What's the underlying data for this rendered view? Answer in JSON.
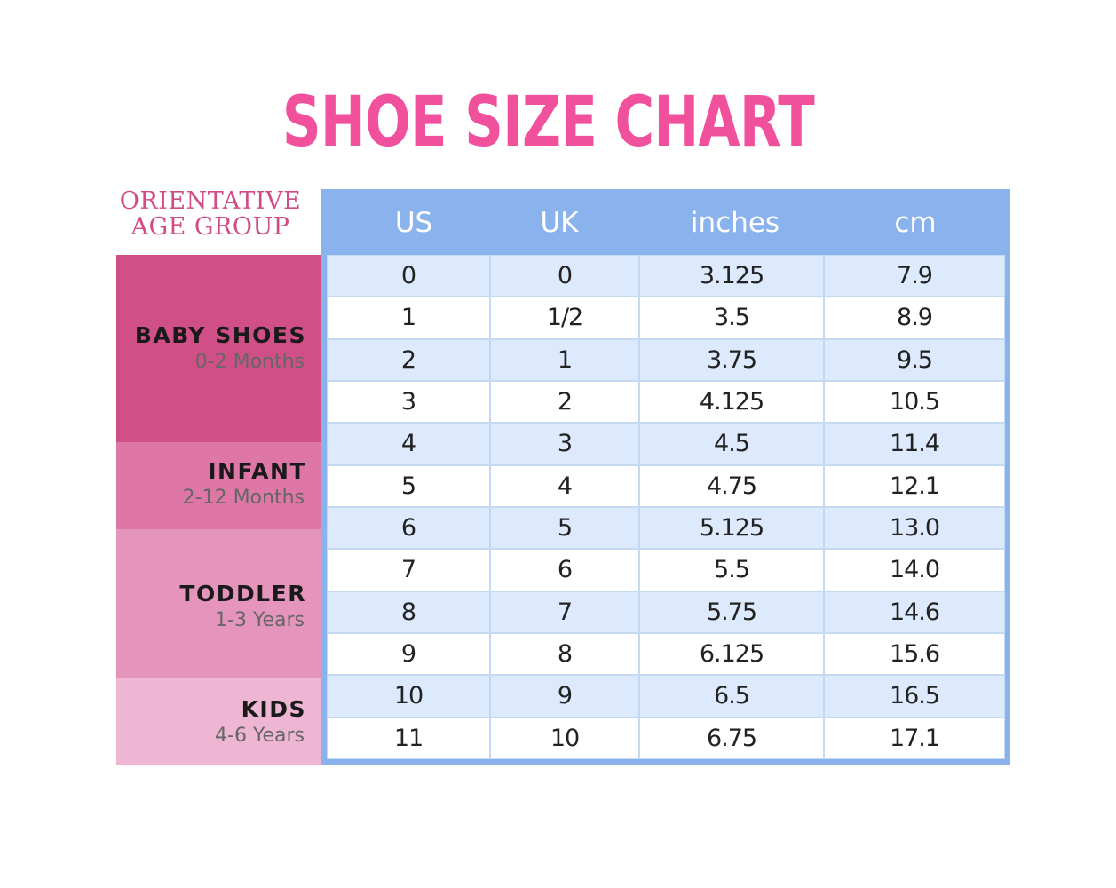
{
  "title": "SHOE SIZE CHART",
  "age_group_header": [
    "ORIENTATIVE",
    "AGE GROUP"
  ],
  "age_groups": [
    {
      "name": "BABY SHOES",
      "range": "0-2 Months",
      "color": "#cf4f86"
    },
    {
      "name": "INFANT",
      "range": "2-12 Months",
      "color": "#de77a5"
    },
    {
      "name": "TODDLER",
      "range": "1-3 Years",
      "color": "#e594bc"
    },
    {
      "name": "KIDS",
      "range": "4-6 Years",
      "color": "#eeb6d2"
    }
  ],
  "columns": [
    "US",
    "UK",
    "inches",
    "cm"
  ],
  "rows": [
    [
      "0",
      "0",
      "3.125",
      "7.9"
    ],
    [
      "1",
      "1/2",
      "3.5",
      "8.9"
    ],
    [
      "2",
      "1",
      "3.75",
      "9.5"
    ],
    [
      "3",
      "2",
      "4.125",
      "10.5"
    ],
    [
      "4",
      "3",
      "4.5",
      "11.4"
    ],
    [
      "5",
      "4",
      "4.75",
      "12.1"
    ],
    [
      "6",
      "5",
      "5.125",
      "13.0"
    ],
    [
      "7",
      "6",
      "5.5",
      "14.0"
    ],
    [
      "8",
      "7",
      "5.75",
      "14.6"
    ],
    [
      "9",
      "8",
      "6.125",
      "15.6"
    ],
    [
      "10",
      "9",
      "6.5",
      "16.5"
    ],
    [
      "11",
      "10",
      "6.75",
      "17.1"
    ]
  ],
  "colors": {
    "title": "#f0509c",
    "header_blue": "#8ab2ec",
    "row_alt": "#dde9fc",
    "row_plain": "#ffffff"
  }
}
